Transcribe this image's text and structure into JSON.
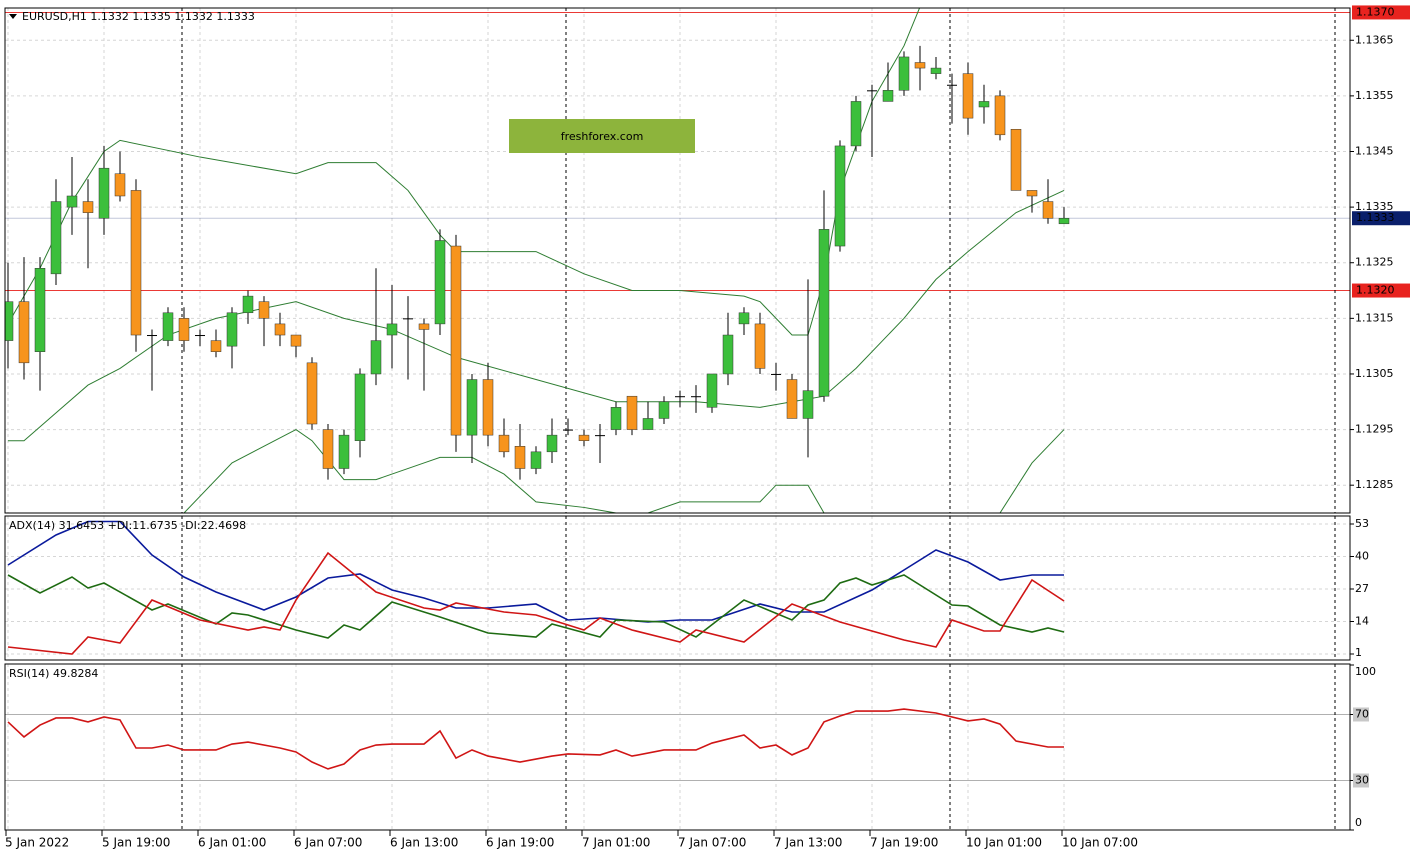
{
  "chart_data": [
    {
      "type": "candlestick",
      "title": "EURUSD,H1  1.1332 1.1335 1.1332 1.1333",
      "watermark": "freshforex.com",
      "categories": [
        "5 Jan 2022",
        null,
        null,
        null,
        null,
        null,
        "5 Jan 19:00",
        null,
        null,
        null,
        null,
        null,
        "6 Jan 01:00",
        null,
        null,
        null,
        null,
        null,
        "6 Jan 07:00",
        null,
        null,
        null,
        null,
        null,
        "6 Jan 13:00",
        null,
        null,
        null,
        null,
        null,
        "6 Jan 19:00",
        null,
        null,
        null,
        null,
        null,
        "7 Jan 01:00",
        null,
        null,
        null,
        null,
        null,
        "7 Jan 07:00",
        null,
        null,
        null,
        null,
        null,
        "7 Jan 13:00",
        null,
        null,
        null,
        null,
        null,
        "7 Jan 19:00",
        null,
        null,
        null,
        null,
        null,
        "10 Jan 01:00",
        null,
        null,
        null,
        null,
        null,
        "10 Jan 07:00"
      ],
      "open": [
        1.1311,
        1.1318,
        1.1309,
        1.1323,
        1.1335,
        1.1336,
        1.1333,
        1.1341,
        1.1338,
        1.1312,
        1.1311,
        1.1315,
        1.1312,
        1.1311,
        1.131,
        1.1316,
        1.1318,
        1.1314,
        1.1312,
        1.1307,
        1.1295,
        1.1288,
        1.1293,
        1.1305,
        1.1312,
        1.1315,
        1.1314,
        1.1314,
        1.1328,
        1.1294,
        1.1304,
        1.1294,
        1.1292,
        1.1288,
        1.1291,
        1.1295,
        1.1294,
        1.1294,
        1.1295,
        1.1301,
        1.1295,
        1.1297,
        1.1301,
        1.1301,
        1.1299,
        1.1305,
        1.1314,
        1.1314,
        1.1305,
        1.1304,
        1.1297,
        1.1301,
        1.1328,
        1.1346,
        1.1356,
        1.1354,
        1.1356,
        1.1361,
        1.1359,
        1.1357,
        1.1359,
        1.1353,
        1.1355,
        1.1349,
        1.1338,
        1.1336,
        1.1332
      ],
      "high": [
        1.1325,
        1.1326,
        1.1326,
        1.134,
        1.1344,
        1.134,
        1.1346,
        1.1345,
        1.134,
        1.1313,
        1.1317,
        1.1317,
        1.1313,
        1.1313,
        1.1317,
        1.132,
        1.1319,
        1.1316,
        1.1312,
        1.1308,
        1.1296,
        1.1295,
        1.1306,
        1.1324,
        1.1321,
        1.1319,
        1.1315,
        1.1331,
        1.133,
        1.1305,
        1.1307,
        1.1297,
        1.1296,
        1.1292,
        1.1297,
        1.1297,
        1.1295,
        1.1296,
        1.13,
        1.1301,
        1.13,
        1.1301,
        1.1302,
        1.1303,
        1.1305,
        1.1316,
        1.1317,
        1.1316,
        1.1307,
        1.1305,
        1.1322,
        1.1338,
        1.1347,
        1.1355,
        1.1357,
        1.1361,
        1.1363,
        1.1364,
        1.1362,
        1.1359,
        1.1361,
        1.1357,
        1.1356,
        1.1349,
        1.1338,
        1.134,
        1.1335
      ],
      "low": [
        1.1306,
        1.1304,
        1.1302,
        1.1321,
        1.133,
        1.1324,
        1.133,
        1.1336,
        1.1309,
        1.1302,
        1.131,
        1.1309,
        1.131,
        1.1308,
        1.1306,
        1.1314,
        1.131,
        1.131,
        1.1308,
        1.1295,
        1.1286,
        1.1287,
        1.129,
        1.1303,
        1.1306,
        1.1304,
        1.1302,
        1.1312,
        1.1291,
        1.1289,
        1.1292,
        1.129,
        1.1286,
        1.1287,
        1.1289,
        1.1294,
        1.1292,
        1.1289,
        1.1294,
        1.1294,
        1.1295,
        1.1296,
        1.1299,
        1.1298,
        1.1298,
        1.1303,
        1.1312,
        1.1305,
        1.1302,
        1.1297,
        1.129,
        1.13,
        1.1327,
        1.1345,
        1.1344,
        1.1354,
        1.1355,
        1.1356,
        1.1358,
        1.135,
        1.1348,
        1.135,
        1.1347,
        1.1338,
        1.1334,
        1.1332,
        1.1332
      ],
      "close": [
        1.1318,
        1.1307,
        1.1324,
        1.1336,
        1.1337,
        1.1334,
        1.1342,
        1.1337,
        1.1312,
        1.1312,
        1.1316,
        1.1311,
        1.1312,
        1.1309,
        1.1316,
        1.1319,
        1.1315,
        1.1312,
        1.131,
        1.1296,
        1.1288,
        1.1294,
        1.1305,
        1.1311,
        1.1314,
        1.1315,
        1.1313,
        1.1329,
        1.1294,
        1.1304,
        1.1294,
        1.1291,
        1.1288,
        1.1291,
        1.1294,
        1.1295,
        1.1293,
        1.1294,
        1.1299,
        1.1295,
        1.1297,
        1.13,
        1.1301,
        1.1301,
        1.1305,
        1.1312,
        1.1316,
        1.1306,
        1.1305,
        1.1297,
        1.1302,
        1.1331,
        1.1346,
        1.1354,
        1.1356,
        1.1356,
        1.1362,
        1.136,
        1.136,
        1.1357,
        1.1351,
        1.1354,
        1.1348,
        1.1338,
        1.1337,
        1.1333,
        1.1333
      ],
      "up_color": "#3cbf3c",
      "down_color": "#f7941d",
      "doji_color": "#000000",
      "bands": [
        {
          "color": "#2e7d32",
          "x": [
            0,
            2,
            4,
            6,
            7,
            12,
            18,
            20,
            23,
            25,
            27,
            28,
            33,
            36,
            39,
            42,
            46,
            47,
            49,
            50,
            51,
            52,
            54,
            56,
            57
          ],
          "values": [
            1.1314,
            1.1324,
            1.1336,
            1.1345,
            1.1347,
            1.1344,
            1.1341,
            1.1343,
            1.1343,
            1.1338,
            1.133,
            1.1327,
            1.1327,
            1.1323,
            1.132,
            1.132,
            1.1319,
            1.1318,
            1.1312,
            1.1312,
            1.1322,
            1.1338,
            1.1354,
            1.1364,
            1.1371
          ]
        },
        {
          "color": "#2e7d32",
          "x": [
            0,
            1,
            3,
            5,
            7,
            10,
            13,
            18,
            21,
            24,
            28,
            33,
            38,
            43,
            47,
            49,
            51,
            53,
            56,
            58,
            60,
            63,
            66
          ],
          "values": [
            1.1293,
            1.1293,
            1.1298,
            1.1303,
            1.1306,
            1.1312,
            1.1315,
            1.1318,
            1.1315,
            1.1313,
            1.1308,
            1.1304,
            1.13,
            1.13,
            1.1299,
            1.13,
            1.1301,
            1.1306,
            1.1315,
            1.1322,
            1.1327,
            1.1334,
            1.1338
          ]
        },
        {
          "color": "#2e7d32",
          "x": [
            11,
            14,
            18,
            19,
            21,
            23,
            26,
            27,
            29,
            31,
            33,
            36,
            38,
            39,
            40,
            42,
            47,
            48,
            50,
            51,
            52,
            62,
            64,
            66
          ],
          "values": [
            1.128,
            1.1289,
            1.1295,
            1.1293,
            1.1286,
            1.1286,
            1.1289,
            1.129,
            1.129,
            1.1287,
            1.1282,
            1.1281,
            1.128,
            null,
            1.128,
            1.1282,
            1.1282,
            1.1285,
            1.1285,
            1.128,
            null,
            1.128,
            1.1289,
            1.1295
          ]
        }
      ],
      "levels": [
        {
          "price": {
            "value": 1.137,
            "label": "1.1370"
          },
          "color": "#e8231f"
        },
        {
          "price": {
            "value": 1.132,
            "label": "1.1320"
          },
          "color": "#e8231f"
        },
        {
          "price": 1.1333,
          "color": "#0a1f6b"
        }
      ],
      "ylim": [
        1.128,
        1.13708
      ],
      "yticks": [
        1.1365,
        1.1355,
        1.1345,
        1.1335,
        1.1325,
        1.1315,
        1.1305,
        1.1295,
        1.1285
      ],
      "grid": true
    },
    {
      "type": "line",
      "title": "ADX(14) 31.6453 +DI:11.6735 -DI:22.4698",
      "series": [
        {
          "color": "#0a1a9c",
          "x": [
            0,
            3,
            5,
            7,
            9,
            11,
            13,
            16,
            18,
            20,
            22,
            24,
            26,
            28,
            30,
            33,
            35,
            37,
            40,
            42,
            44,
            47,
            49,
            51,
            54,
            56,
            58,
            60,
            62,
            64,
            66
          ],
          "values": [
            36.6,
            48.6,
            54,
            54,
            40.6,
            31.8,
            25.8,
            18.6,
            23.8,
            31.4,
            33,
            26.6,
            23.4,
            19.4,
            19.4,
            21,
            14.6,
            15.4,
            13.8,
            14.6,
            14.6,
            21,
            17.8,
            17.8,
            26.6,
            34.6,
            42.6,
            37.8,
            30.6,
            32.6,
            32.6
          ]
        },
        {
          "color": "#1e6b12",
          "x": [
            0,
            2,
            4,
            5,
            6,
            9,
            10,
            13,
            14,
            15,
            18,
            20,
            21,
            22,
            24,
            27,
            30,
            33,
            34,
            37,
            38,
            41,
            43,
            46,
            49,
            50,
            51,
            52,
            53,
            54,
            56,
            59,
            60,
            62,
            64,
            65,
            66
          ],
          "values": [
            32.6,
            25.4,
            31.8,
            27.4,
            29.4,
            18.6,
            21,
            13,
            17.4,
            16.6,
            10.6,
            7.4,
            12.6,
            10.6,
            21.8,
            15.8,
            9.4,
            7.8,
            13,
            7.8,
            14.6,
            13.8,
            7.8,
            22.6,
            14.6,
            20.6,
            22.6,
            29.4,
            31.4,
            28.6,
            32.6,
            20.6,
            20.2,
            12.6,
            9.8,
            11.4,
            9.8
          ]
        },
        {
          "color": "#d01515",
          "x": [
            0,
            4,
            5,
            7,
            9,
            12,
            15,
            16,
            17,
            18,
            20,
            23,
            26,
            27,
            28,
            31,
            33,
            36,
            37,
            39,
            42,
            43,
            46,
            49,
            52,
            56,
            58,
            59,
            61,
            62,
            64,
            66
          ],
          "values": [
            3.8,
            1,
            7.8,
            5.4,
            22.6,
            14.6,
            10.6,
            11.8,
            10.6,
            22.6,
            41.4,
            25.8,
            19.4,
            18.6,
            21.4,
            17.8,
            16.6,
            10.6,
            15.4,
            10.6,
            5.8,
            10.6,
            5.8,
            21,
            13.8,
            6.6,
            3.8,
            14.6,
            10.2,
            10.2,
            30.6,
            22.2
          ]
        }
      ],
      "ylim": [
        -1.4,
        56.2
      ],
      "yticks": [
        53,
        40,
        27,
        14,
        1
      ],
      "grid": true
    },
    {
      "type": "line",
      "title": "RSI(14) 49.8284",
      "series": [
        {
          "color": "#d01515",
          "x": [
            0,
            1,
            2,
            3,
            4,
            5,
            6,
            7,
            8,
            9,
            10,
            11,
            13,
            14,
            15,
            17,
            18,
            19,
            20,
            21,
            22,
            23,
            24,
            26,
            27,
            28,
            29,
            30,
            32,
            34,
            35,
            37,
            38,
            39,
            41,
            43,
            44,
            46,
            47,
            48,
            49,
            50,
            51,
            52,
            53,
            55,
            56,
            58,
            60,
            61,
            62,
            63,
            65,
            66
          ],
          "values": [
            65.5,
            56.4,
            63.6,
            67.9,
            67.9,
            65.5,
            68.5,
            66.7,
            49.7,
            49.7,
            51.5,
            48.5,
            48.5,
            52.1,
            53.3,
            49.7,
            47.3,
            41.2,
            37,
            40,
            48.5,
            51.5,
            52.1,
            52.1,
            60,
            43.6,
            48.5,
            44.8,
            41.2,
            44.8,
            46.1,
            45.5,
            48.5,
            44.8,
            48.5,
            48.5,
            52.7,
            57.6,
            49.7,
            51.5,
            45.5,
            49.7,
            65.5,
            69.1,
            72.1,
            72.1,
            73.3,
            70.9,
            66.1,
            67.3,
            64.2,
            53.9,
            50.3,
            50.3
          ]
        }
      ],
      "ylim": [
        0,
        100.6
      ],
      "yticks": [
        100,
        70,
        30,
        0
      ],
      "grid": true
    }
  ]
}
